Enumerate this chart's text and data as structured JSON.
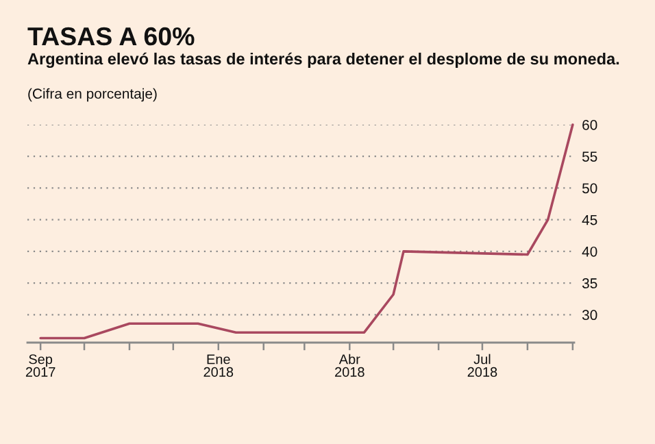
{
  "chart_data": {
    "type": "line",
    "title": "TASAS A 60%",
    "subtitle": "Argentina elevó las tasas de interés para detener el desplome de su moneda.",
    "ylabel": "(Cifra en porcentaje)",
    "x": [
      "2017-09-01",
      "2017-10-01",
      "2017-11-01",
      "2017-12-18",
      "2018-01-13",
      "2018-04-11",
      "2018-05-01",
      "2018-05-08",
      "2018-08-01",
      "2018-08-15",
      "2018-09-01"
    ],
    "series": [
      {
        "color": "#a9485f",
        "values": [
          26.3,
          26.3,
          28.6,
          28.6,
          27.2,
          27.2,
          33.2,
          40,
          39.5,
          45,
          60
        ]
      }
    ],
    "xlim": [
      "2017-08-23",
      "2018-09-02"
    ],
    "xticks": [
      {
        "value": "2017-09-01",
        "label": "Sep\n2017"
      },
      {
        "value": "2017-10-01",
        "label": null
      },
      {
        "value": "2017-11-01",
        "label": null
      },
      {
        "value": "2017-12-01",
        "label": null
      },
      {
        "value": "2018-01-01",
        "label": "Ene\n2018"
      },
      {
        "value": "2018-02-01",
        "label": null
      },
      {
        "value": "2018-03-01",
        "label": null
      },
      {
        "value": "2018-04-01",
        "label": "Abr\n2018"
      },
      {
        "value": "2018-05-01",
        "label": null
      },
      {
        "value": "2018-06-01",
        "label": null
      },
      {
        "value": "2018-07-01",
        "label": "Jul\n2018"
      },
      {
        "value": "2018-08-01",
        "label": null
      },
      {
        "value": "2018-09-01",
        "label": null
      }
    ],
    "ylim": [
      25.6,
      60
    ],
    "yticks": [
      30,
      35,
      40,
      45,
      50,
      55,
      60
    ],
    "grid": "y",
    "line_style": "solid"
  }
}
